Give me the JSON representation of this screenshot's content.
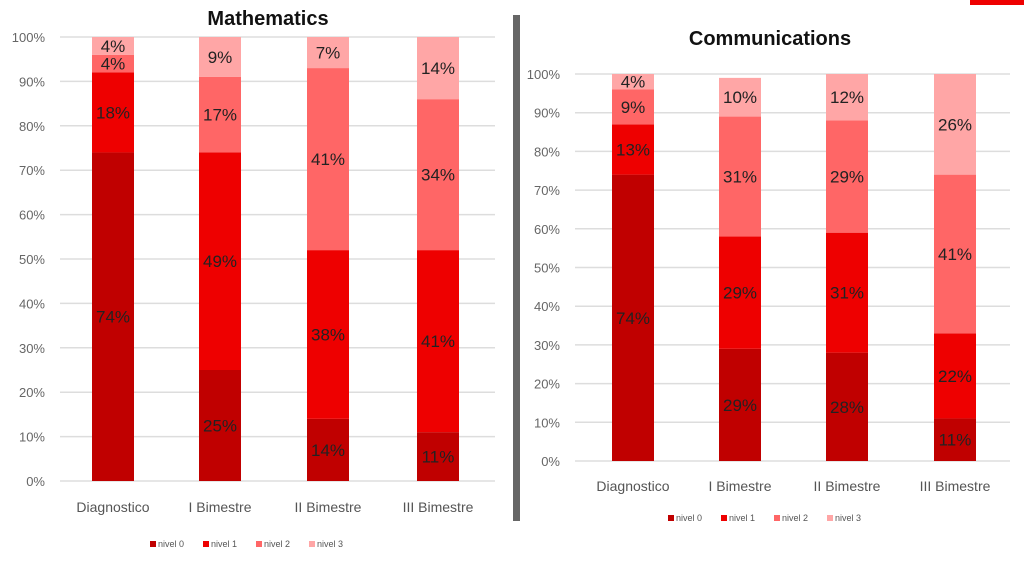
{
  "legend_colors": {
    "nivel 0": "#C00000",
    "nivel 1": "#EE0000",
    "nivel 2": "#FF6666",
    "nivel 3": "#FFA6A6"
  },
  "chart_data": [
    {
      "type": "bar",
      "stacked": true,
      "title": "Mathematics",
      "categories": [
        "Diagnostico",
        "I Bimestre",
        "II Bimestre",
        "III Bimestre"
      ],
      "yticks": [
        "0%",
        "10%",
        "20%",
        "30%",
        "40%",
        "50%",
        "60%",
        "70%",
        "80%",
        "90%",
        "100%"
      ],
      "ylim": [
        0,
        100
      ],
      "grid": true,
      "legend_position": "bottom",
      "series": [
        {
          "name": "nivel 0",
          "values": [
            74,
            25,
            14,
            11
          ]
        },
        {
          "name": "nivel 1",
          "values": [
            18,
            49,
            38,
            41
          ]
        },
        {
          "name": "nivel 2",
          "values": [
            4,
            17,
            41,
            34
          ]
        },
        {
          "name": "nivel 3",
          "values": [
            4,
            9,
            7,
            14
          ]
        }
      ]
    },
    {
      "type": "bar",
      "stacked": true,
      "title": "Communications",
      "categories": [
        "Diagnostico",
        "I Bimestre",
        "II Bimestre",
        "III Bimestre"
      ],
      "yticks": [
        "0%",
        "10%",
        "20%",
        "30%",
        "40%",
        "50%",
        "60%",
        "70%",
        "80%",
        "90%",
        "100%"
      ],
      "ylim": [
        0,
        100
      ],
      "grid": true,
      "legend_position": "bottom",
      "series": [
        {
          "name": "nivel 0",
          "values": [
            74,
            29,
            28,
            11
          ]
        },
        {
          "name": "nivel 1",
          "values": [
            13,
            29,
            31,
            22
          ]
        },
        {
          "name": "nivel 2",
          "values": [
            9,
            31,
            29,
            41
          ]
        },
        {
          "name": "nivel 3",
          "values": [
            4,
            10,
            12,
            26
          ]
        }
      ]
    }
  ]
}
